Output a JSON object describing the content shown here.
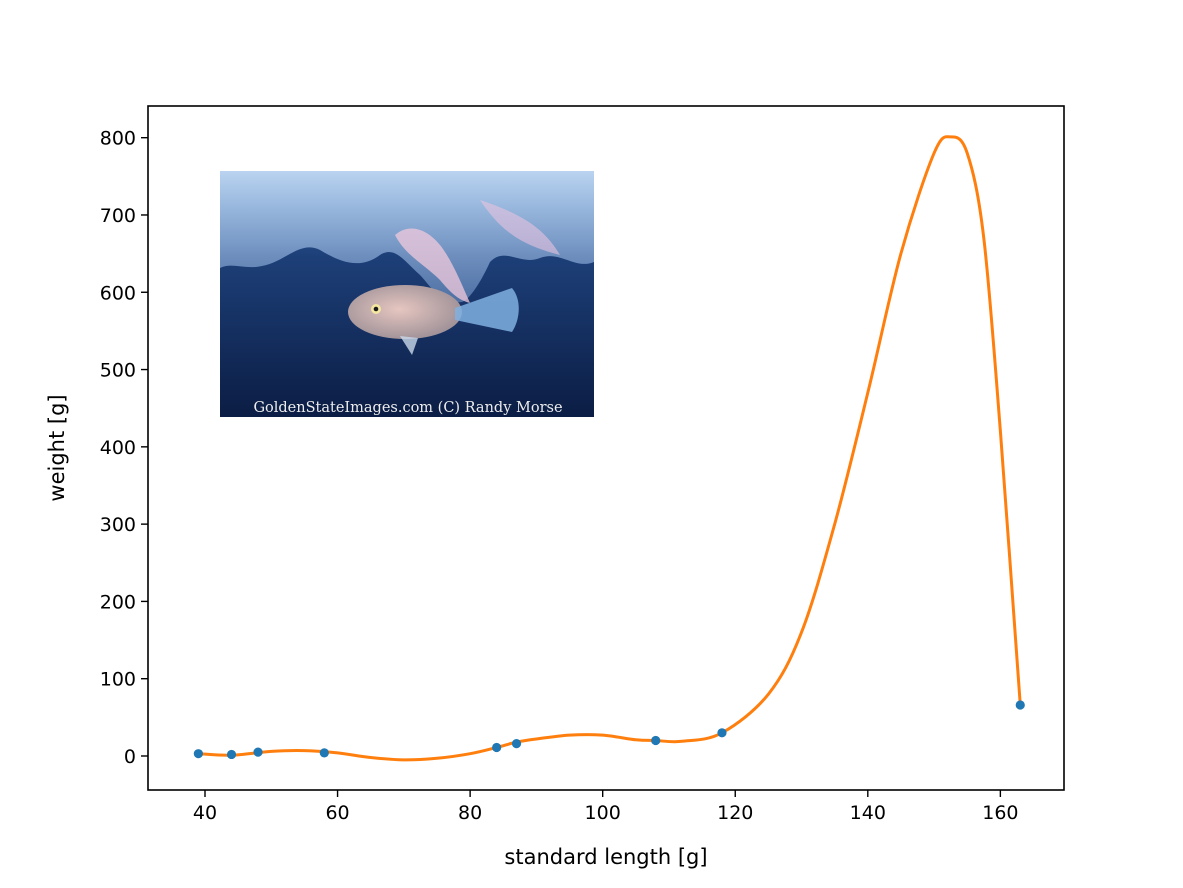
{
  "chart_data": {
    "type": "scatter",
    "title": "",
    "xlabel": "standard length [g]",
    "ylabel": "weight [g]",
    "xlim": [
      31.4,
      169.6
    ],
    "ylim": [
      -44,
      841
    ],
    "xticks": [
      40,
      60,
      80,
      100,
      120,
      140,
      160
    ],
    "yticks": [
      0,
      100,
      200,
      300,
      400,
      500,
      600,
      700,
      800
    ],
    "grid": false,
    "legend": "none",
    "series": [
      {
        "kind": "points",
        "color": "#1f77b4",
        "x": [
          39,
          44,
          48,
          58,
          84,
          87,
          108,
          118,
          163
        ],
        "y": [
          3,
          2,
          5,
          4,
          11,
          16,
          20,
          30,
          66
        ]
      },
      {
        "kind": "fitted-curve",
        "color": "#ff7f0e",
        "x": [
          39,
          44,
          50,
          55,
          60,
          65,
          70,
          75,
          80,
          84,
          87,
          90,
          95,
          100,
          105,
          108,
          112,
          118,
          125,
          130,
          135,
          140,
          145,
          150,
          152.5,
          155,
          157.5,
          160,
          163
        ],
        "y": [
          3,
          1,
          6,
          7,
          4,
          -2,
          -5,
          -3,
          3,
          11,
          18,
          22,
          27,
          27,
          21,
          20,
          19,
          30,
          80,
          160,
          300,
          470,
          650,
          780,
          801,
          780,
          670,
          420,
          66
        ]
      }
    ],
    "inset_image": {
      "subject": "translucent juvenile fish beneath a jellyfish",
      "credit_text": "GoldenStateImages.com (C) Randy Morse"
    }
  }
}
